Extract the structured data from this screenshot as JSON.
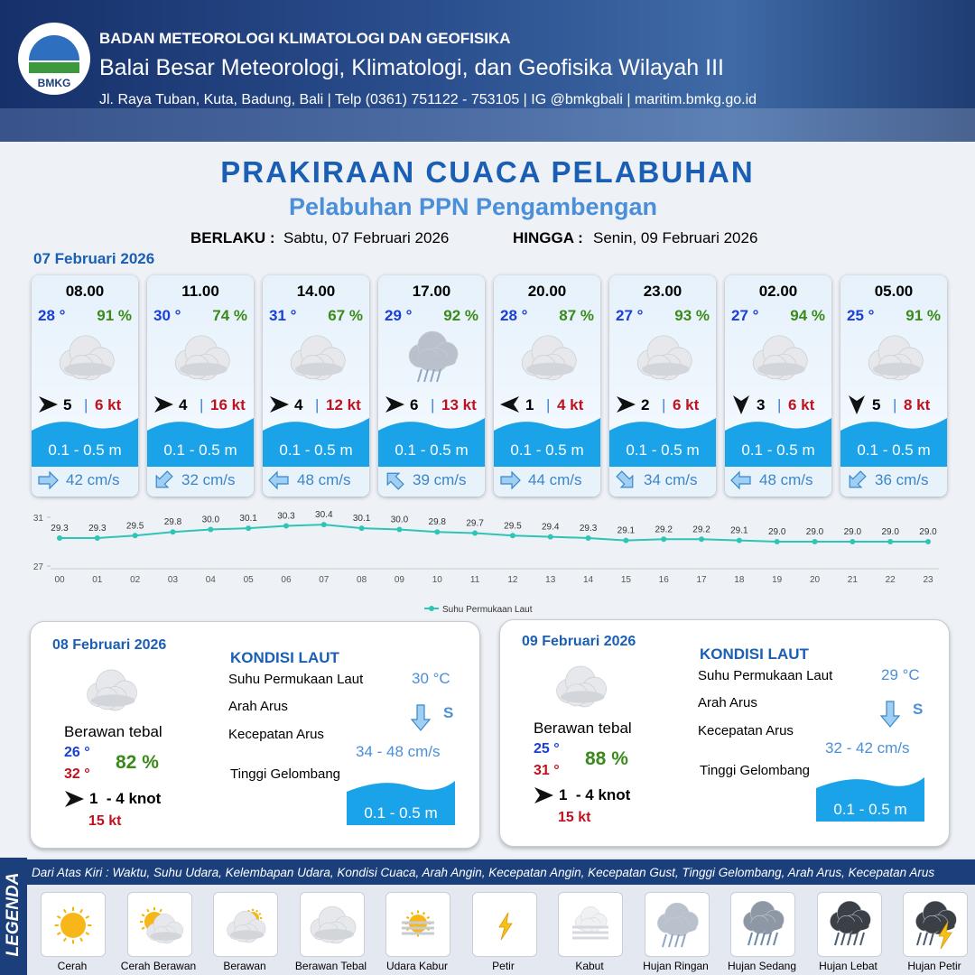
{
  "logo": "BMKG",
  "header": {
    "org": "BADAN METEOROLOGI KLIMATOLOGI DAN GEOFISIKA",
    "office": "Balai Besar Meteorologi, Klimatologi, dan Geofisika Wilayah III",
    "address": "Jl. Raya Tuban, Kuta, Badung, Bali | Telp (0361) 751122 - 753105 | IG @bmkgbali | maritim.bmkg.go.id"
  },
  "title": "PRAKIRAAN CUACA PELABUHAN",
  "subtitle": "Pelabuhan PPN Pengambengan",
  "validity": {
    "from_label": "BERLAKU :",
    "from": "Sabtu, 07 Februari 2026",
    "to_label": "HINGGA :",
    "to": "Senin, 09 Februari 2026"
  },
  "day_label": "07 Februari 2026",
  "forecasts": [
    {
      "time": "08.00",
      "temp": "28 °",
      "humidity": "91 %",
      "icon": "Berawan Tebal",
      "wind_angle": 0,
      "wind": "5",
      "gust": "6 kt",
      "wave": "0.1 - 0.5 m",
      "current_angle": 0,
      "current": "42 cm/s"
    },
    {
      "time": "11.00",
      "temp": "30 °",
      "humidity": "74 %",
      "icon": "Berawan Tebal",
      "wind_angle": 0,
      "wind": "4",
      "gust": "16 kt",
      "wave": "0.1 - 0.5 m",
      "current_angle": 135,
      "current": "32 cm/s"
    },
    {
      "time": "14.00",
      "temp": "31 °",
      "humidity": "67 %",
      "icon": "Berawan Tebal",
      "wind_angle": 0,
      "wind": "4",
      "gust": "12 kt",
      "wave": "0.1 - 0.5 m",
      "current_angle": 180,
      "current": "48 cm/s"
    },
    {
      "time": "17.00",
      "temp": "29 °",
      "humidity": "92 %",
      "icon": "Hujan Ringan",
      "wind_angle": 0,
      "wind": "6",
      "gust": "13 kt",
      "wave": "0.1 - 0.5 m",
      "current_angle": 225,
      "current": "39 cm/s"
    },
    {
      "time": "20.00",
      "temp": "28 °",
      "humidity": "87 %",
      "icon": "Berawan Tebal",
      "wind_angle": 180,
      "wind": "1",
      "gust": "4 kt",
      "wave": "0.1 - 0.5 m",
      "current_angle": 0,
      "current": "44 cm/s"
    },
    {
      "time": "23.00",
      "temp": "27 °",
      "humidity": "93 %",
      "icon": "Berawan Tebal",
      "wind_angle": 0,
      "wind": "2",
      "gust": "6 kt",
      "wave": "0.1 - 0.5 m",
      "current_angle": 45,
      "current": "34 cm/s"
    },
    {
      "time": "02.00",
      "temp": "27 °",
      "humidity": "94 %",
      "icon": "Berawan Tebal",
      "wind_angle": 90,
      "wind": "3",
      "gust": "6 kt",
      "wave": "0.1 - 0.5 m",
      "current_angle": 180,
      "current": "48 cm/s"
    },
    {
      "time": "05.00",
      "temp": "25 °",
      "humidity": "91 %",
      "icon": "Berawan Tebal",
      "wind_angle": 90,
      "wind": "5",
      "gust": "8 kt",
      "wave": "0.1 - 0.5 m",
      "current_angle": 135,
      "current": "36 cm/s"
    }
  ],
  "chart_data": {
    "type": "line",
    "categories": [
      "00",
      "01",
      "02",
      "03",
      "04",
      "05",
      "06",
      "07",
      "08",
      "09",
      "10",
      "11",
      "12",
      "13",
      "14",
      "15",
      "16",
      "17",
      "18",
      "19",
      "20",
      "21",
      "22",
      "23"
    ],
    "series": [
      {
        "name": "Suhu Permukaan Laut",
        "color": "#2ec4b6",
        "values": [
          29.3,
          29.3,
          29.5,
          29.8,
          30.0,
          30.1,
          30.3,
          30.4,
          30.1,
          30.0,
          29.8,
          29.7,
          29.5,
          29.4,
          29.3,
          29.1,
          29.2,
          29.2,
          29.1,
          29.0,
          29.0,
          29.0,
          29.0,
          29.0
        ],
        "value_labels": [
          "29.3",
          "29.3",
          "29.5",
          "29.8",
          "30.0",
          "30.1",
          "30.3",
          "30.4",
          "30.1",
          "30.0",
          "29.8",
          "29.7",
          "29.5",
          "29.4",
          "29.3",
          "29.1",
          "29.2",
          "29.2",
          "29.1",
          "29.0",
          "29.0",
          "29.0",
          "29.0",
          "29.0"
        ]
      }
    ],
    "ylim": [
      27,
      31
    ],
    "yticks": [
      27,
      31
    ]
  },
  "days": [
    {
      "date": "08 Februari 2026",
      "condition": "Berawan tebal",
      "temp_min": "26 °",
      "temp_max": "32 °",
      "humidity": "82 %",
      "wind": "1  - 4 knot",
      "gust": "15 kt",
      "section": "KONDISI LAUT",
      "sst_label": "Suhu Permukaan Laut",
      "sst": "30 °C",
      "dir_label": "Arah Arus",
      "dir": "S",
      "speed_label": "Kecepatan Arus",
      "speed": "34 - 48 cm/s",
      "wave_label": "Tinggi Gelombang",
      "wave": "0.1 - 0.5 m"
    },
    {
      "date": "09 Februari 2026",
      "condition": "Berawan tebal",
      "temp_min": "25 °",
      "temp_max": "31 °",
      "humidity": "88 %",
      "wind": "1  - 4 knot",
      "gust": "15 kt",
      "section": "KONDISI LAUT",
      "sst_label": "Suhu Permukaan Laut",
      "sst": "29 °C",
      "dir_label": "Arah Arus",
      "dir": "S",
      "speed_label": "Kecepatan Arus",
      "speed": "32 - 42 cm/s",
      "wave_label": "Tinggi Gelombang",
      "wave": "0.1 - 0.5 m"
    }
  ],
  "legend": {
    "title": "LEGENDA",
    "note": "Dari Atas Kiri : Waktu, Suhu Udara, Kelembapan Udara, Kondisi Cuaca, Arah Angin, Kecepatan Angin, Kecepatan Gust, Tinggi Gelombang, Arah Arus, Kecepatan Arus",
    "items": [
      "Cerah",
      "Cerah Berawan",
      "Berawan",
      "Berawan Tebal",
      "Udara Kabur",
      "Petir",
      "Kabut",
      "Hujan Ringan",
      "Hujan Sedang",
      "Hujan Lebat",
      "Hujan Petir"
    ]
  }
}
